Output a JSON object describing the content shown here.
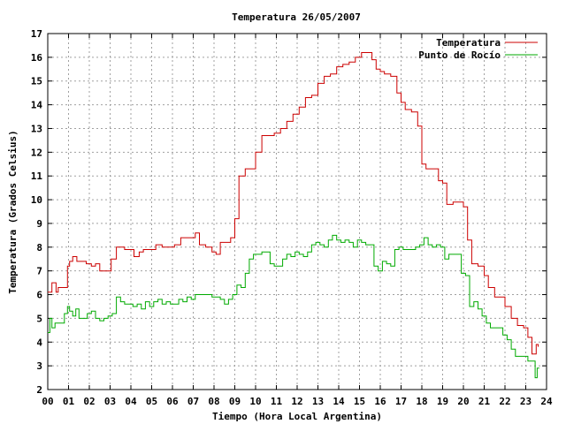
{
  "chart_data": {
    "type": "line",
    "title": "Temperatura 26/05/2007",
    "xlabel": "Tiempo (Hora Local Argentina)",
    "ylabel": "Temperatura (Grados Celsius)",
    "xlim": [
      0,
      24
    ],
    "ylim": [
      2,
      17
    ],
    "xticks": [
      "00",
      "01",
      "02",
      "03",
      "04",
      "05",
      "06",
      "07",
      "08",
      "09",
      "10",
      "11",
      "12",
      "13",
      "14",
      "15",
      "16",
      "17",
      "18",
      "19",
      "20",
      "21",
      "22",
      "23",
      "24"
    ],
    "yticks": [
      "2",
      "3",
      "4",
      "5",
      "6",
      "7",
      "8",
      "9",
      "10",
      "11",
      "12",
      "13",
      "14",
      "15",
      "16",
      "17"
    ],
    "grid": true,
    "legend_position": "top-right",
    "series": [
      {
        "name": "Temperatura",
        "color": "#cc0000",
        "x": [
          0.0,
          0.2,
          0.4,
          0.5,
          0.6,
          0.8,
          0.95,
          1.05,
          1.2,
          1.4,
          1.6,
          1.85,
          2.1,
          2.3,
          2.5,
          2.7,
          2.9,
          3.05,
          3.3,
          3.5,
          3.7,
          3.95,
          4.15,
          4.4,
          4.6,
          4.9,
          5.2,
          5.5,
          5.8,
          6.1,
          6.4,
          6.8,
          7.1,
          7.3,
          7.6,
          7.9,
          8.1,
          8.3,
          8.6,
          8.8,
          9.0,
          9.2,
          9.5,
          9.8,
          10.0,
          10.3,
          10.6,
          10.9,
          11.2,
          11.5,
          11.8,
          12.1,
          12.4,
          12.7,
          13.0,
          13.3,
          13.6,
          13.9,
          14.2,
          14.5,
          14.8,
          15.1,
          15.4,
          15.6,
          15.8,
          16.0,
          16.2,
          16.5,
          16.8,
          17.0,
          17.2,
          17.5,
          17.8,
          18.0,
          18.2,
          18.5,
          18.8,
          19.0,
          19.2,
          19.5,
          19.8,
          20.0,
          20.2,
          20.4,
          20.7,
          21.0,
          21.2,
          21.5,
          21.8,
          22.0,
          22.3,
          22.6,
          22.9,
          23.1,
          23.3,
          23.5,
          23.6
        ],
        "y": [
          6.1,
          6.5,
          6.1,
          6.3,
          6.3,
          6.3,
          7.2,
          7.4,
          7.6,
          7.4,
          7.4,
          7.3,
          7.2,
          7.3,
          7.0,
          7.0,
          7.0,
          7.5,
          8.0,
          8.0,
          7.9,
          7.9,
          7.6,
          7.8,
          7.9,
          7.9,
          8.1,
          8.0,
          8.0,
          8.1,
          8.4,
          8.4,
          8.6,
          8.1,
          8.0,
          7.8,
          7.7,
          8.2,
          8.2,
          8.4,
          9.2,
          11.0,
          11.3,
          11.3,
          12.0,
          12.7,
          12.7,
          12.8,
          13.0,
          13.3,
          13.6,
          13.9,
          14.3,
          14.4,
          14.9,
          15.2,
          15.3,
          15.6,
          15.7,
          15.8,
          16.0,
          16.2,
          16.2,
          15.9,
          15.5,
          15.4,
          15.3,
          15.2,
          14.5,
          14.1,
          13.8,
          13.7,
          13.1,
          11.5,
          11.3,
          11.3,
          10.8,
          10.7,
          9.8,
          9.9,
          9.9,
          9.7,
          8.3,
          7.3,
          7.2,
          6.8,
          6.3,
          5.9,
          5.9,
          5.5,
          5.0,
          4.7,
          4.6,
          4.2,
          3.5,
          3.9,
          3.8
        ]
      },
      {
        "name": "Punto de Rocío",
        "color": "#00aa00",
        "x": [
          0.0,
          0.1,
          0.2,
          0.35,
          0.5,
          0.65,
          0.8,
          0.95,
          1.05,
          1.2,
          1.35,
          1.5,
          1.7,
          1.9,
          2.1,
          2.3,
          2.5,
          2.7,
          2.9,
          3.1,
          3.3,
          3.5,
          3.7,
          3.9,
          4.1,
          4.3,
          4.5,
          4.7,
          4.9,
          5.1,
          5.3,
          5.5,
          5.7,
          5.9,
          6.1,
          6.3,
          6.5,
          6.7,
          6.9,
          7.1,
          7.3,
          7.5,
          7.7,
          7.9,
          8.1,
          8.3,
          8.5,
          8.7,
          8.9,
          9.1,
          9.3,
          9.5,
          9.7,
          9.9,
          10.1,
          10.3,
          10.5,
          10.7,
          10.9,
          11.1,
          11.3,
          11.5,
          11.7,
          11.9,
          12.1,
          12.3,
          12.5,
          12.7,
          12.9,
          13.1,
          13.3,
          13.5,
          13.7,
          13.9,
          14.1,
          14.3,
          14.5,
          14.7,
          14.9,
          15.1,
          15.3,
          15.5,
          15.7,
          15.9,
          16.1,
          16.3,
          16.5,
          16.7,
          16.9,
          17.1,
          17.3,
          17.5,
          17.7,
          17.9,
          18.1,
          18.3,
          18.5,
          18.7,
          18.9,
          19.1,
          19.3,
          19.5,
          19.7,
          19.9,
          20.1,
          20.3,
          20.5,
          20.7,
          20.9,
          21.1,
          21.3,
          21.5,
          21.7,
          21.9,
          22.1,
          22.3,
          22.5,
          22.7,
          22.9,
          23.1,
          23.3,
          23.45,
          23.55,
          23.65
        ],
        "y": [
          4.4,
          5.0,
          4.6,
          4.8,
          4.8,
          4.8,
          5.2,
          5.5,
          5.3,
          5.1,
          5.4,
          5.0,
          5.0,
          5.2,
          5.3,
          5.0,
          4.9,
          5.0,
          5.1,
          5.2,
          5.9,
          5.7,
          5.6,
          5.6,
          5.5,
          5.6,
          5.4,
          5.7,
          5.5,
          5.7,
          5.8,
          5.6,
          5.7,
          5.6,
          5.6,
          5.8,
          5.7,
          5.9,
          5.8,
          6.0,
          6.0,
          6.0,
          6.0,
          5.9,
          5.9,
          5.8,
          5.6,
          5.8,
          6.0,
          6.4,
          6.3,
          6.9,
          7.5,
          7.7,
          7.7,
          7.8,
          7.8,
          7.3,
          7.2,
          7.2,
          7.5,
          7.7,
          7.6,
          7.8,
          7.7,
          7.6,
          7.8,
          8.1,
          8.2,
          8.1,
          8.0,
          8.3,
          8.5,
          8.3,
          8.2,
          8.3,
          8.2,
          8.0,
          8.3,
          8.2,
          8.1,
          8.1,
          7.2,
          7.0,
          7.4,
          7.3,
          7.2,
          7.9,
          8.0,
          7.9,
          7.9,
          7.9,
          8.0,
          8.1,
          8.4,
          8.1,
          8.0,
          8.1,
          8.0,
          7.5,
          7.7,
          7.7,
          7.7,
          6.9,
          6.8,
          5.5,
          5.7,
          5.4,
          5.1,
          4.8,
          4.6,
          4.6,
          4.6,
          4.3,
          4.1,
          3.7,
          3.4,
          3.4,
          3.4,
          3.2,
          3.2,
          2.5,
          2.9,
          2.9
        ]
      }
    ]
  }
}
